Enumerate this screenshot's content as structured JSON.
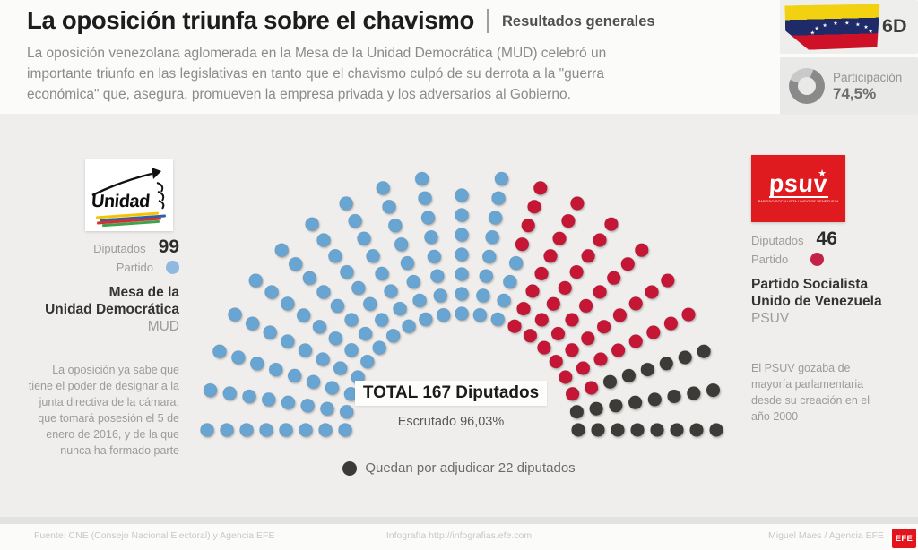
{
  "header": {
    "title": "La oposición triunfa sobre el chavismo",
    "kicker": "Resultados generales",
    "subtitle_lines": [
      "La oposición venezolana aglomerada en la Mesa de la Unidad Democrática (MUD) celebró un",
      "importante triunfo en las legislativas en tanto que el chavismo culpó de su derrota a la \"guerra",
      "económica\" que, asegura, promueven la empresa privada y los adversarios al Gobierno."
    ],
    "date_badge": "6D",
    "participation_label": "Participación",
    "participation_value": "74,5%",
    "participation_pct": 74.5,
    "participation_colors": {
      "filled": "#8a8a8a",
      "empty": "#c9c9c9"
    },
    "flag": {
      "yellow": "#f2d111",
      "blue": "#1f2a68",
      "red": "#cf1127",
      "stars": 8,
      "star_glyph": "★"
    }
  },
  "left_party": {
    "logo_text": "Unidad",
    "deputies_label": "Diputados",
    "deputies_value": "99",
    "party_label": "Partido",
    "name_line1": "Mesa de la",
    "name_line2": "Unidad Democrática",
    "abbr": "MUD",
    "note": "La oposición ya sabe que tiene el poder de designar a la junta directiva de la cámara, que tomará posesión el 5 de enero de 2016, y de la que nunca ha formado parte",
    "color": "#8fb9de"
  },
  "right_party": {
    "logo_text": "PSUV",
    "logo_sub": "PARTIDO SOCIALISTA UNIDO DE VENEZUELA",
    "logo_bg": "#e01b20",
    "logo_star": "★",
    "deputies_label": "Diputados",
    "deputies_value": "46",
    "party_label": "Partido",
    "name_line1": "Partido Socialista",
    "name_line2": "Unido de Venezuela",
    "abbr": "PSUV",
    "note": "El PSUV gozaba de mayoría parlamentaria desde su creación en el año 2000",
    "color": "#c52045"
  },
  "center": {
    "total_label": "TOTAL 167 Diputados",
    "scrutinized": "Escrutado 96,03%",
    "pending_legend": "Quedan por adjudicar 22 diputados",
    "pending_color": "#3b3a39"
  },
  "chart_data": {
    "type": "parliament",
    "title": "TOTAL 167 Diputados",
    "total_seats": 167,
    "scrutinized_pct": 96.03,
    "series": [
      {
        "name": "MUD",
        "seats": 99,
        "color": "#68a5d2"
      },
      {
        "name": "PSUV",
        "seats": 46,
        "color": "#c51434"
      },
      {
        "name": "Por adjudicar",
        "seats": 22,
        "color": "#3b3a39"
      }
    ],
    "layout": {
      "spokes": 21,
      "seats_per_spoke": 8,
      "short_spoke_index": 10,
      "inner_radius": 130,
      "seat_pitch": 22,
      "dot_radius": 7.5,
      "center_x": 515,
      "center_y": 480
    }
  },
  "footer": {
    "source": "Fuente: CNE (Consejo Nacional Electoral) y Agencia EFE",
    "infographics": "Infografía http://infografias.efe.com",
    "credit": "Miguel Maes / Agencia EFE",
    "efe_badge": "EFE"
  }
}
